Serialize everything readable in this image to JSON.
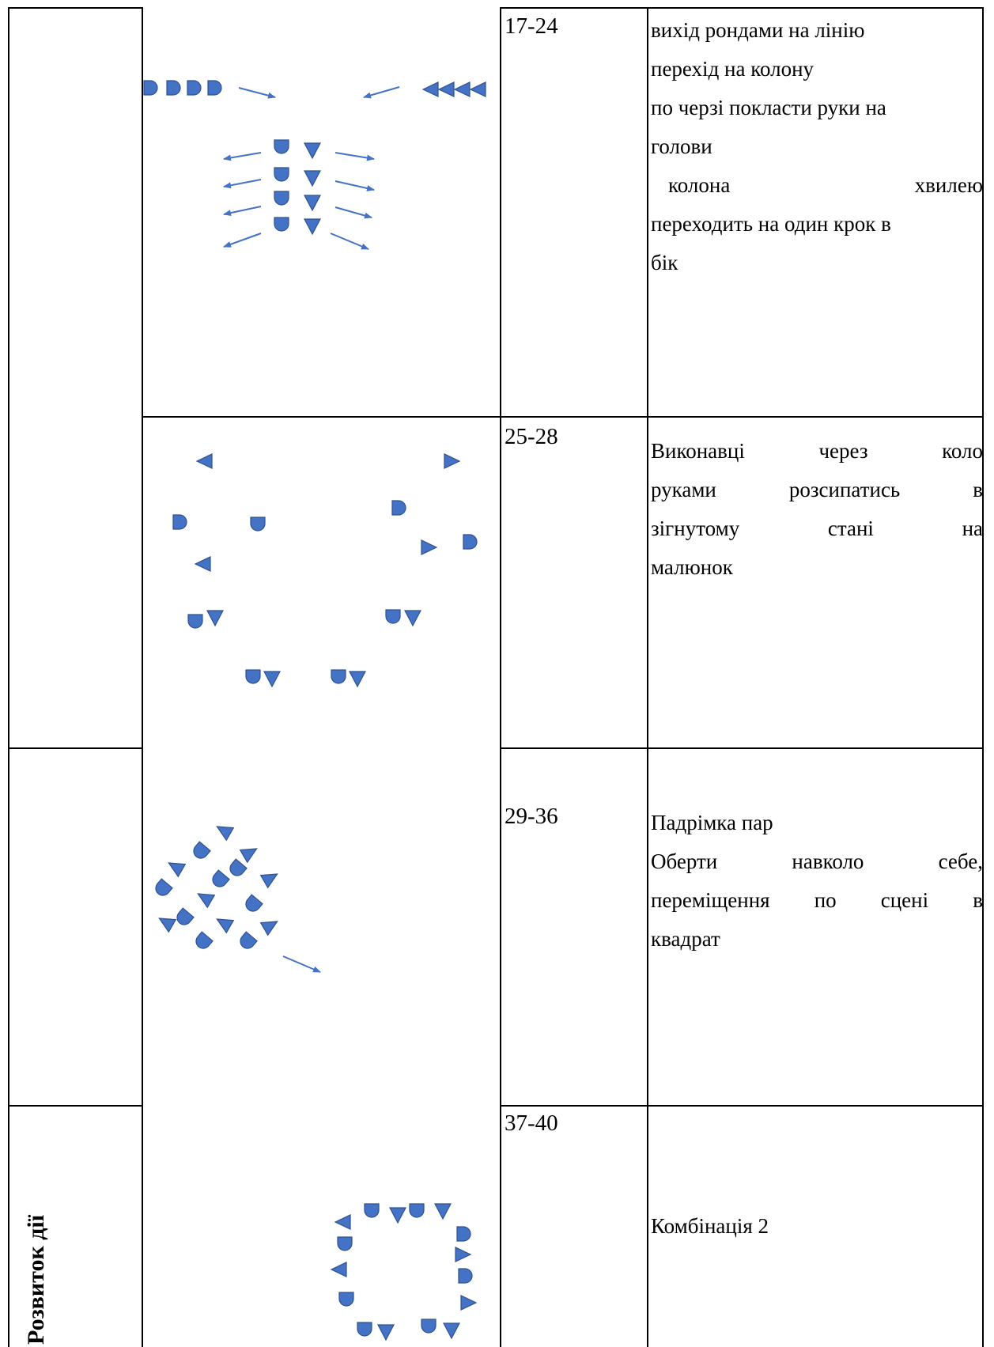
{
  "section_label": "Розвиток дії",
  "rows": [
    {
      "bars": "17-24",
      "lines": [
        {
          "text": "вихід рондами на лінію"
        },
        {
          "text": "перехід на  колону"
        },
        {
          "text": "по черзі покласти руки на"
        },
        {
          "text": "голови"
        },
        {
          "parts": [
            "колона",
            "хвилею"
          ]
        },
        {
          "text": "переходить на один крок в"
        },
        {
          "text": "бік"
        }
      ]
    },
    {
      "bars": "25-28",
      "lines": [
        {
          "parts": [
            "Виконавці",
            "через",
            "коло"
          ]
        },
        {
          "parts": [
            "руками",
            "розсипатись",
            "в"
          ]
        },
        {
          "parts": [
            "зігнутому",
            "стані",
            "на"
          ]
        },
        {
          "text": "малюнок"
        }
      ]
    },
    {
      "bars": "29-36",
      "lines": [
        {
          "text": "Падрімка пар"
        },
        {
          "parts": [
            "Оберти",
            "навколо",
            "себе,"
          ]
        },
        {
          "parts": [
            "переміщення",
            "по",
            "сцені",
            "в"
          ]
        },
        {
          "text": "квадрат"
        }
      ]
    },
    {
      "bars": "37-40",
      "lines": [
        {
          "text": "Комбінація 2"
        }
      ]
    }
  ],
  "legend_colors": {
    "figure_fill": "#4472C4",
    "figure_stroke": "#2F528F",
    "arrow": "#4472C4"
  }
}
